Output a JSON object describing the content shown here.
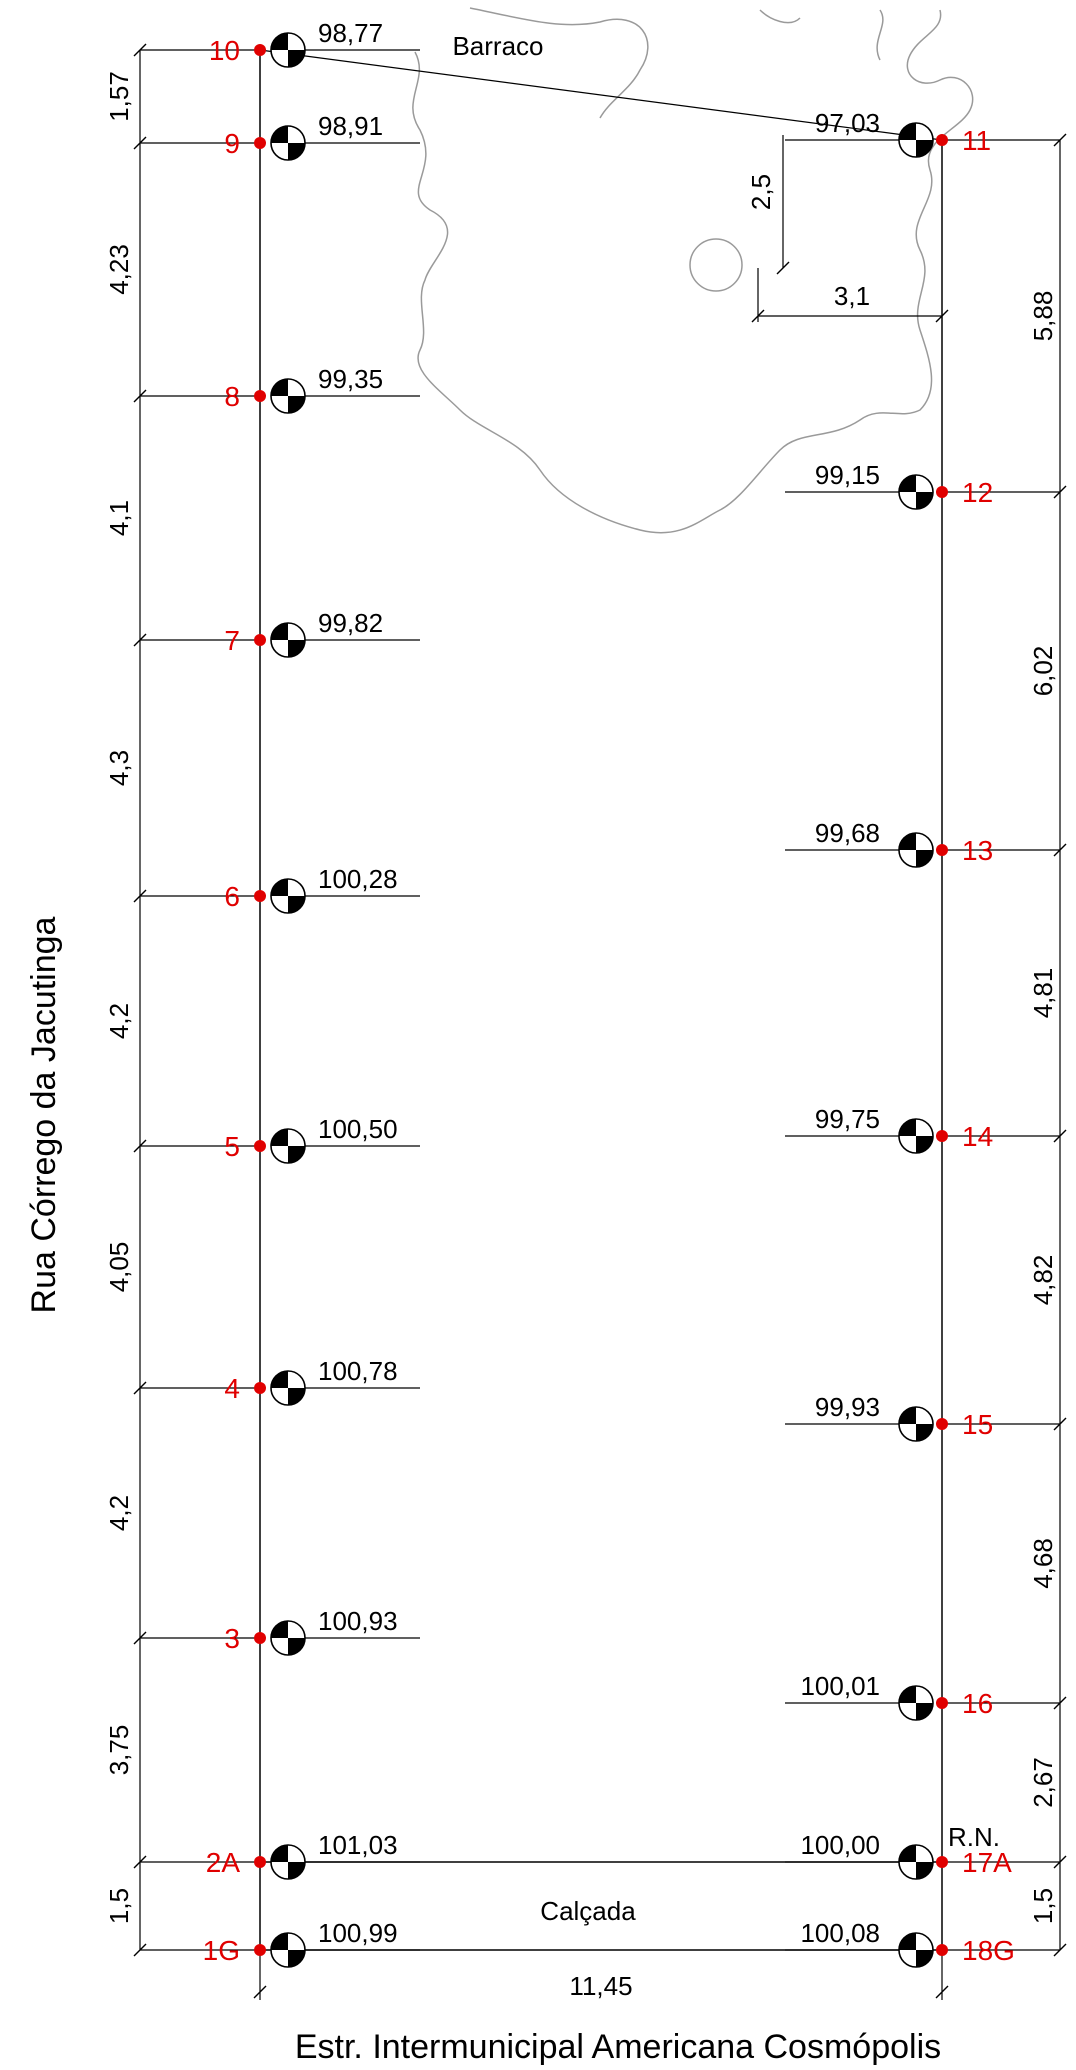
{
  "street_left": "Rua Córrego da Jacutinga",
  "street_bottom": "Estr. Intermunicipal Americana Cosmópolis",
  "label_barraco": "Barraco",
  "label_calcada": "Calçada",
  "label_rn": "R.N.",
  "colors": {
    "point": "#e00000",
    "line": "#000000",
    "contour": "#9a9a9a"
  },
  "left_points": [
    {
      "id": "10",
      "elev": "98,77"
    },
    {
      "id": "9",
      "elev": "98,91"
    },
    {
      "id": "8",
      "elev": "99,35"
    },
    {
      "id": "7",
      "elev": "99,82"
    },
    {
      "id": "6",
      "elev": "100,28"
    },
    {
      "id": "5",
      "elev": "100,50"
    },
    {
      "id": "4",
      "elev": "100,78"
    },
    {
      "id": "3",
      "elev": "100,93"
    },
    {
      "id": "2A",
      "elev": "101,03"
    },
    {
      "id": "1G",
      "elev": "100,99"
    }
  ],
  "right_points": [
    {
      "id": "11",
      "elev": "97,03"
    },
    {
      "id": "12",
      "elev": "99,15"
    },
    {
      "id": "13",
      "elev": "99,68"
    },
    {
      "id": "14",
      "elev": "99,75"
    },
    {
      "id": "15",
      "elev": "99,93"
    },
    {
      "id": "16",
      "elev": "100,01"
    },
    {
      "id": "17A",
      "elev": "100,00"
    },
    {
      "id": "18G",
      "elev": "100,08"
    }
  ],
  "left_dims": [
    "1,57",
    "4,23",
    "4,1",
    "4,3",
    "4,2",
    "4,05",
    "4,2",
    "3,75",
    "1,5"
  ],
  "right_dims": [
    "5,88",
    "6,02",
    "4,81",
    "4,82",
    "4,68",
    "2,67",
    "1,5"
  ],
  "width_dim": "11,45",
  "barraco_dims": {
    "vertical": "2,5",
    "horizontal": "3,1"
  }
}
